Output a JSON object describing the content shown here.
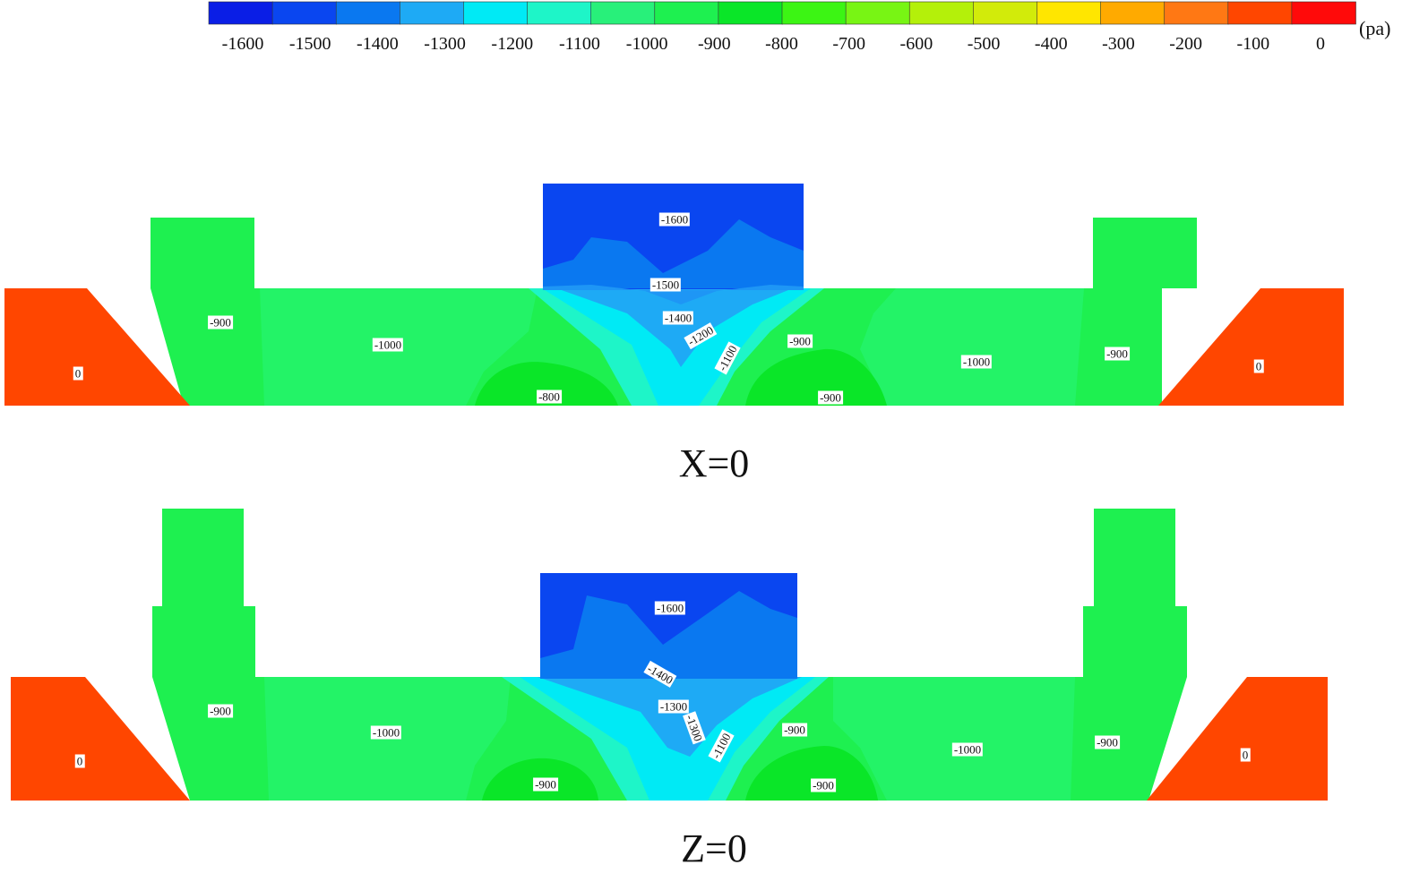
{
  "legend": {
    "unit": "(pa)",
    "ticks": [
      "-1600",
      "-1500",
      "-1400",
      "-1300",
      "-1200",
      "-1100",
      "-1000",
      "-900",
      "-800",
      "-700",
      "-600",
      "-500",
      "-400",
      "-300",
      "-200",
      "-100",
      "0"
    ],
    "colors": [
      "#0a1ee6",
      "#0a46f0",
      "#0a78f0",
      "#1eaaf5",
      "#00eaf5",
      "#1ef5c8",
      "#28f07a",
      "#1ef050",
      "#0ae628",
      "#3cf514",
      "#78f514",
      "#b4f00a",
      "#d2eb0a",
      "#ffe600",
      "#ffaa00",
      "#ff7814",
      "#ff4600",
      "#ff0a0a"
    ]
  },
  "panels": [
    {
      "caption": "X=0",
      "labels": [
        "-1600",
        "-1500",
        "-1400",
        "-1200",
        "-1100",
        "-900",
        "-1000",
        "-800",
        "-900",
        "-900",
        "-1000",
        "-900",
        "0",
        "0"
      ]
    },
    {
      "caption": "Z=0",
      "labels": [
        "-1600",
        "-1400",
        "-1300",
        "-1300",
        "-1100",
        "-900",
        "-1000",
        "-900",
        "-900",
        "-900",
        "-1000",
        "-900",
        "0",
        "0"
      ]
    }
  ]
}
